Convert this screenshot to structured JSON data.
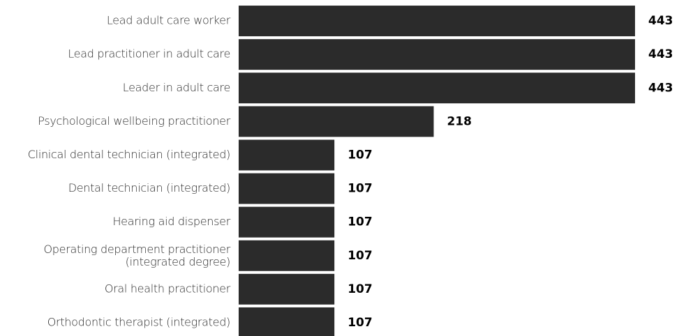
{
  "chart_data": {
    "type": "bar",
    "orientation": "horizontal",
    "categories": [
      "Lead adult care worker",
      "Lead practitioner in adult care",
      "Leader in adult care",
      "Psychological wellbeing practitioner",
      "Clinical dental technician (integrated)",
      "Dental technician (integrated)",
      "Hearing aid dispenser",
      "Operating department practitioner\n(integrated degree)",
      "Oral health practitioner",
      "Orthodontic therapist (integrated)"
    ],
    "values": [
      443,
      443,
      443,
      218,
      107,
      107,
      107,
      107,
      107,
      107
    ],
    "color": "#2b2b2b"
  }
}
